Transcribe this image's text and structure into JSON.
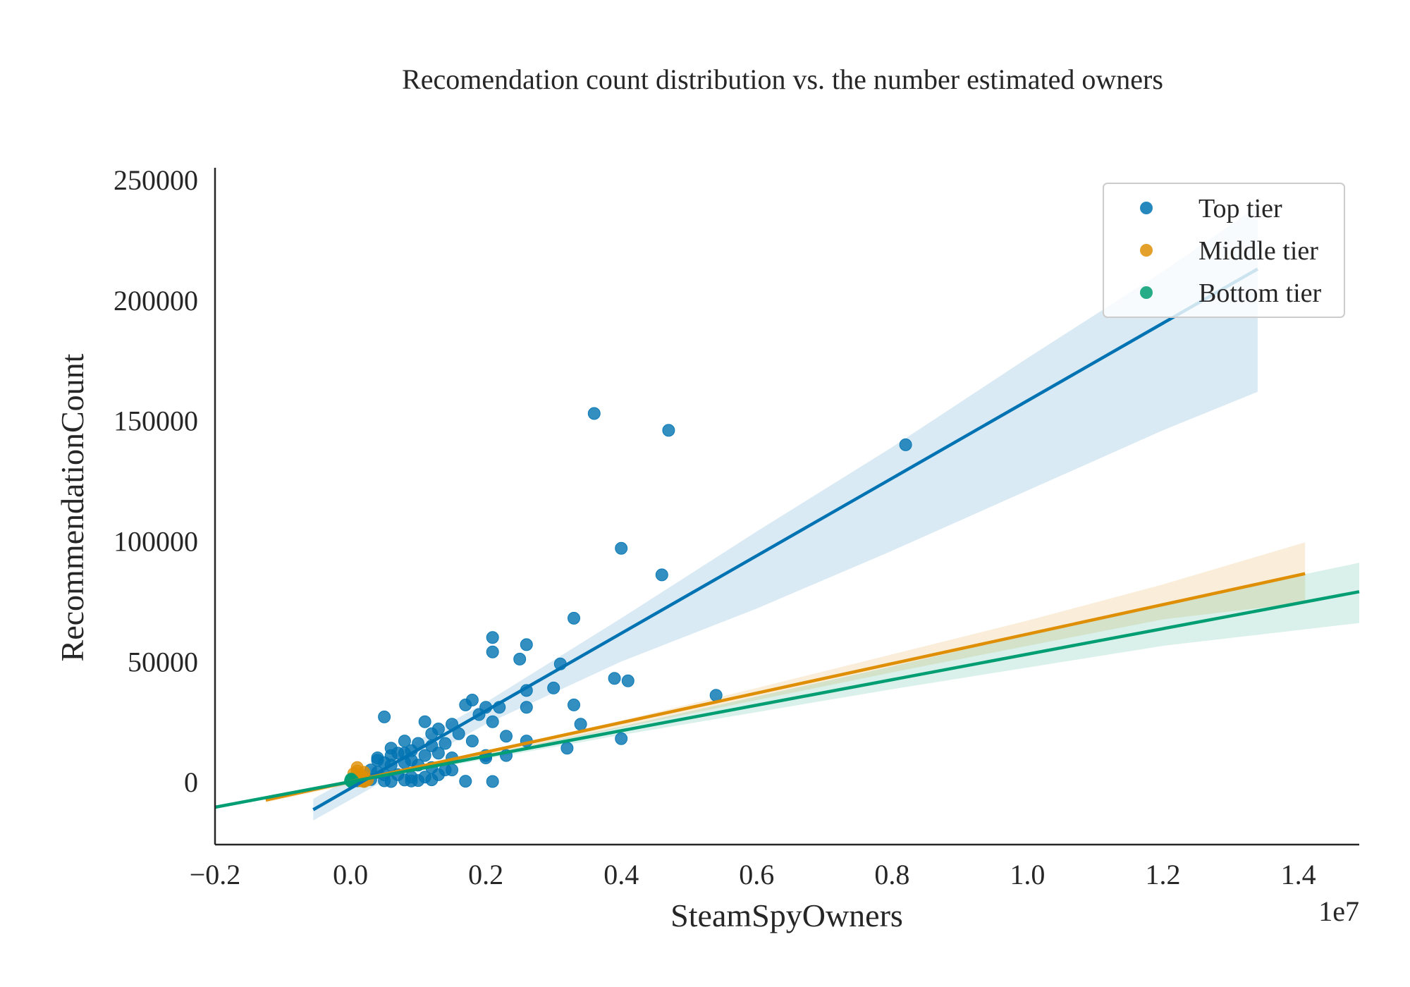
{
  "chart_data": {
    "type": "scatter",
    "title": "Recomendation count distribution vs. the number estimated owners",
    "xlabel": "SteamSpyOwners",
    "ylabel": "RecommendationCount",
    "x_offset_text": "1e7",
    "xlim": [
      -0.2,
      1.49
    ],
    "ylim": [
      -26000,
      255000
    ],
    "x_ticks": [
      -0.2,
      0.0,
      0.2,
      0.4,
      0.6,
      0.8,
      1.0,
      1.2,
      1.4
    ],
    "x_tick_labels": [
      "−0.2",
      "0.0",
      "0.2",
      "0.4",
      "0.6",
      "0.8",
      "1.0",
      "1.2",
      "1.4"
    ],
    "y_ticks": [
      0,
      50000,
      100000,
      150000,
      200000,
      250000
    ],
    "y_tick_labels": [
      "0",
      "50000",
      "100000",
      "150000",
      "200000",
      "250000"
    ],
    "grid": false,
    "legend_position": "top-right",
    "series": [
      {
        "name": "Top tier",
        "color": "#0173b2",
        "points": [
          [
            0.36,
            153000
          ],
          [
            0.47,
            146000
          ],
          [
            0.82,
            140000
          ],
          [
            0.4,
            97000
          ],
          [
            0.46,
            86000
          ],
          [
            0.33,
            68000
          ],
          [
            0.21,
            60000
          ],
          [
            0.21,
            54000
          ],
          [
            0.26,
            57000
          ],
          [
            0.25,
            51000
          ],
          [
            0.31,
            49000
          ],
          [
            0.39,
            43000
          ],
          [
            0.41,
            42000
          ],
          [
            0.54,
            36000
          ],
          [
            0.26,
            38000
          ],
          [
            0.3,
            39000
          ],
          [
            0.18,
            34000
          ],
          [
            0.17,
            32000
          ],
          [
            0.2,
            31000
          ],
          [
            0.22,
            31000
          ],
          [
            0.26,
            31000
          ],
          [
            0.33,
            32000
          ],
          [
            0.19,
            28000
          ],
          [
            0.21,
            25000
          ],
          [
            0.05,
            27000
          ],
          [
            0.34,
            24000
          ],
          [
            0.11,
            25000
          ],
          [
            0.15,
            24000
          ],
          [
            0.13,
            22000
          ],
          [
            0.16,
            20000
          ],
          [
            0.23,
            19000
          ],
          [
            0.26,
            17000
          ],
          [
            0.18,
            17000
          ],
          [
            0.4,
            18000
          ],
          [
            0.32,
            14000
          ],
          [
            0.08,
            17000
          ],
          [
            0.1,
            16000
          ],
          [
            0.12,
            15000
          ],
          [
            0.14,
            16000
          ],
          [
            0.06,
            14000
          ],
          [
            0.07,
            12000
          ],
          [
            0.09,
            13000
          ],
          [
            0.11,
            11000
          ],
          [
            0.13,
            12000
          ],
          [
            0.15,
            10000
          ],
          [
            0.2,
            11000
          ],
          [
            0.23,
            11000
          ],
          [
            0.2,
            10000
          ],
          [
            0.04,
            9000
          ],
          [
            0.05,
            8000
          ],
          [
            0.06,
            7000
          ],
          [
            0.08,
            8000
          ],
          [
            0.1,
            7000
          ],
          [
            0.12,
            6000
          ],
          [
            0.14,
            5000
          ],
          [
            0.15,
            5000
          ],
          [
            0.03,
            5000
          ],
          [
            0.04,
            4000
          ],
          [
            0.05,
            3000
          ],
          [
            0.07,
            3000
          ],
          [
            0.09,
            2000
          ],
          [
            0.11,
            2000
          ],
          [
            0.13,
            3000
          ],
          [
            0.02,
            2000
          ],
          [
            0.03,
            1000
          ],
          [
            0.05,
            500
          ],
          [
            0.06,
            200
          ],
          [
            0.08,
            800
          ],
          [
            0.09,
            400
          ],
          [
            0.1,
            600
          ],
          [
            0.12,
            900
          ],
          [
            0.17,
            300
          ],
          [
            0.21,
            200
          ],
          [
            0.01,
            500
          ],
          [
            0.02,
            300
          ],
          [
            0.04,
            10000
          ],
          [
            0.06,
            11000
          ],
          [
            0.08,
            12000
          ],
          [
            0.09,
            9000
          ],
          [
            0.12,
            20000
          ]
        ],
        "fit": {
          "x": [
            -0.055,
            1.34
          ],
          "y": [
            -11500,
            213000
          ]
        },
        "band": {
          "x": [
            -0.055,
            0.2,
            0.4,
            0.6,
            0.8,
            1.0,
            1.2,
            1.34
          ],
          "upper": [
            -7000,
            33000,
            68000,
            104000,
            139000,
            176000,
            212000,
            239000
          ],
          "lower": [
            -16000,
            24000,
            50000,
            72000,
            96000,
            121000,
            146000,
            162000
          ]
        }
      },
      {
        "name": "Middle tier",
        "color": "#de8f05",
        "points": [
          [
            0.01,
            6000
          ],
          [
            0.01,
            4500
          ],
          [
            0.015,
            3000
          ],
          [
            0.02,
            2000
          ],
          [
            0.01,
            1000
          ],
          [
            0.015,
            500
          ],
          [
            0.02,
            200
          ],
          [
            0.005,
            3500
          ],
          [
            0.01,
            2500
          ],
          [
            0.02,
            4000
          ],
          [
            0.015,
            1500
          ],
          [
            0.025,
            800
          ]
        ],
        "fit": {
          "x": [
            -0.125,
            1.41
          ],
          "y": [
            -7500,
            86500
          ]
        },
        "band": {
          "x": [
            -0.125,
            0.2,
            0.4,
            0.6,
            0.8,
            1.0,
            1.2,
            1.41
          ],
          "upper": [
            -6500,
            13000,
            25500,
            39000,
            53000,
            67000,
            82000,
            99500
          ],
          "lower": [
            -8500,
            11000,
            22500,
            34000,
            45500,
            56500,
            67500,
            74500
          ]
        }
      },
      {
        "name": "Bottom tier",
        "color": "#029e73",
        "points": [
          [
            0.0,
            500
          ],
          [
            0.001,
            800
          ],
          [
            0.002,
            300
          ],
          [
            0.001,
            1200
          ],
          [
            0.003,
            600
          ],
          [
            0.002,
            0
          ]
        ],
        "fit": {
          "x": [
            -0.2,
            1.49
          ],
          "y": [
            -10500,
            79000
          ]
        },
        "band": {
          "x": [
            -0.2,
            0.2,
            0.4,
            0.6,
            0.8,
            1.0,
            1.2,
            1.49
          ],
          "upper": [
            -10000,
            11500,
            23000,
            35500,
            48000,
            61000,
            74000,
            91000
          ],
          "lower": [
            -11000,
            9500,
            19500,
            29000,
            38500,
            47500,
            56500,
            66000
          ]
        }
      }
    ]
  }
}
